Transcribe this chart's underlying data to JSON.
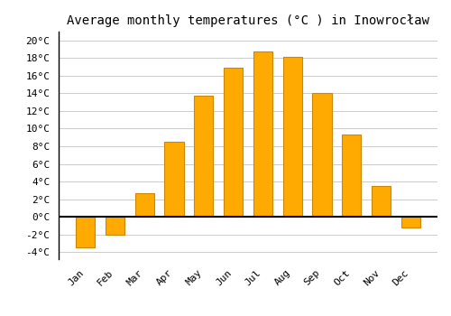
{
  "months": [
    "Jan",
    "Feb",
    "Mar",
    "Apr",
    "May",
    "Jun",
    "Jul",
    "Aug",
    "Sep",
    "Oct",
    "Nov",
    "Dec"
  ],
  "temperatures": [
    -3.5,
    -2.0,
    2.7,
    8.5,
    13.7,
    16.9,
    18.7,
    18.1,
    14.0,
    9.3,
    3.5,
    -1.2
  ],
  "bar_color": "#FFAA00",
  "bar_edge_color": "#CC8800",
  "title": "Average monthly temperatures (°C ) in Inowrocław",
  "ylim": [
    -4.8,
    21.0
  ],
  "yticks": [
    -4,
    -2,
    0,
    2,
    4,
    6,
    8,
    10,
    12,
    14,
    16,
    18,
    20
  ],
  "ytick_labels": [
    "-4°C",
    "-2°C",
    "0°C",
    "2°C",
    "4°C",
    "6°C",
    "8°C",
    "10°C",
    "12°C",
    "14°C",
    "16°C",
    "18°C",
    "20°C"
  ],
  "background_color": "#FFFFFF",
  "grid_color": "#CCCCCC",
  "zero_line_color": "#000000",
  "spine_color": "#000000",
  "title_fontsize": 10,
  "tick_fontsize": 8,
  "bar_width": 0.65
}
